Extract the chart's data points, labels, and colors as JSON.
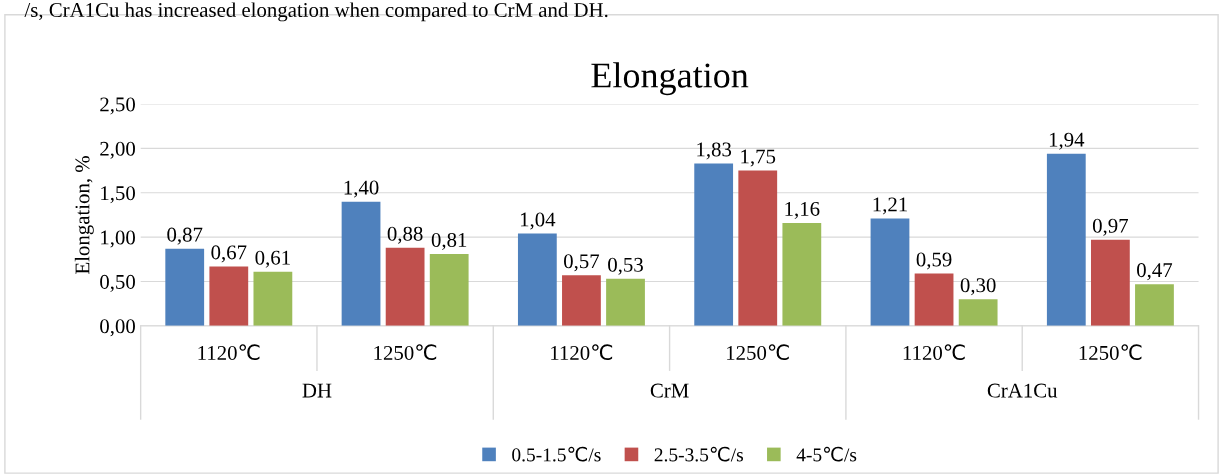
{
  "chart_data": {
    "type": "bar",
    "title": "Elongation",
    "ylabel": "Elongation, %",
    "categories": [
      "1120℃",
      "1250℃",
      "1120℃",
      "1250℃",
      "1120℃",
      "1250℃"
    ],
    "annotations": [
      "/s, CrA1Cu has increased elongation when compared to CrM and DH.",
      "DH",
      "CrM",
      "CrA1Cu"
    ],
    "series": [
      {
        "name": "0.5-1.5℃/s",
        "color": "#4f81bd",
        "values": [
          0.87,
          1.4,
          1.04,
          1.83,
          1.21,
          1.94
        ],
        "value_labels": [
          "0,87",
          "1,40",
          "1,04",
          "1,83",
          "1,21",
          "1,94"
        ]
      },
      {
        "name": "2.5-3.5℃/s",
        "color": "#c0504d",
        "values": [
          0.67,
          0.88,
          0.57,
          1.75,
          0.59,
          0.97
        ],
        "value_labels": [
          "0,67",
          "0,88",
          "0,57",
          "1,75",
          "0,59",
          "0,97"
        ]
      },
      {
        "name": "4-5℃/s",
        "color": "#9bbb59",
        "values": [
          0.61,
          0.81,
          0.53,
          1.16,
          0.3,
          0.47
        ],
        "value_labels": [
          "0,61",
          "0,81",
          "0,53",
          "1,16",
          "0,30",
          "0,47"
        ]
      }
    ],
    "ylim": [
      0,
      2.5
    ],
    "yticks": [
      {
        "value": 0,
        "label": "0,00"
      },
      {
        "value": 0.5,
        "label": "0,50"
      },
      {
        "value": 1,
        "label": "1,00"
      },
      {
        "value": 1.5,
        "label": "1,50"
      },
      {
        "value": 2,
        "label": "2,00"
      },
      {
        "value": 2.5,
        "label": "2,50"
      }
    ],
    "grid": "y",
    "legend": "bottom"
  }
}
